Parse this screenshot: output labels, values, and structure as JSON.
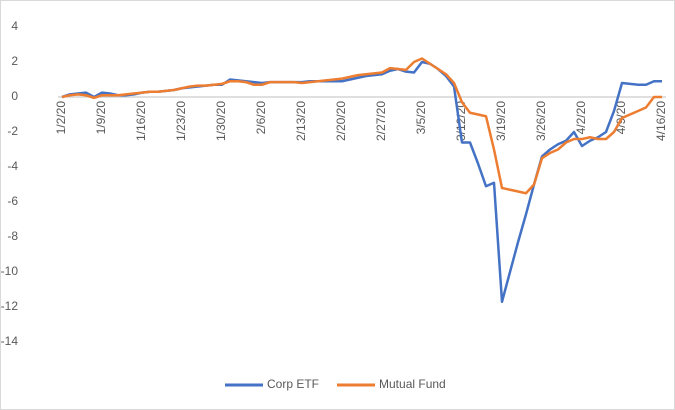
{
  "chart_data": {
    "type": "line",
    "categories": [
      "1/2/20",
      null,
      null,
      null,
      null,
      "1/9/20",
      null,
      null,
      null,
      null,
      "1/16/20",
      null,
      null,
      null,
      null,
      "1/23/20",
      null,
      null,
      null,
      null,
      "1/30/20",
      null,
      null,
      null,
      null,
      "2/6/20",
      null,
      null,
      null,
      null,
      "2/13/20",
      null,
      null,
      null,
      null,
      "2/20/20",
      null,
      null,
      null,
      null,
      "2/27/20",
      null,
      null,
      null,
      null,
      "3/5/20",
      null,
      null,
      null,
      null,
      "3/12/20",
      null,
      null,
      null,
      null,
      "3/19/20",
      null,
      null,
      null,
      null,
      "3/26/20",
      null,
      null,
      null,
      null,
      "4/2/20",
      null,
      null,
      null,
      null,
      "4/9/20",
      null,
      null,
      null,
      null,
      "4/16/20"
    ],
    "series": [
      {
        "name": "Corp ETF",
        "color": "#4472c4",
        "values": [
          0,
          0.15,
          0.2,
          0.25,
          0.0,
          0.25,
          0.2,
          0.1,
          0.1,
          0.15,
          0.25,
          0.3,
          0.3,
          0.35,
          0.4,
          0.5,
          0.55,
          0.6,
          0.65,
          0.7,
          0.7,
          1.0,
          0.95,
          0.9,
          0.85,
          0.8,
          0.85,
          0.85,
          0.85,
          0.85,
          0.85,
          0.9,
          0.9,
          0.9,
          0.9,
          0.9,
          1.0,
          1.1,
          1.2,
          1.25,
          1.3,
          1.5,
          1.6,
          1.45,
          1.4,
          2.0,
          1.9,
          1.6,
          1.2,
          0.6,
          -2.6,
          -2.6,
          -3.8,
          -5.1,
          -4.9,
          -11.7,
          -10,
          -8.3,
          -6.7,
          -5.0,
          -3.4,
          -3.0,
          -2.7,
          -2.5,
          -2.0,
          -2.8,
          -2.5,
          -2.3,
          -2.0,
          -0.8,
          0.8,
          0.75,
          0.7,
          0.7,
          0.9,
          0.9
        ]
      },
      {
        "name": "Mutual Fund",
        "color": "#ed7d31",
        "values": [
          0,
          0.1,
          0.15,
          0.1,
          -0.05,
          0.1,
          0.1,
          0.1,
          0.15,
          0.2,
          0.25,
          0.3,
          0.3,
          0.35,
          0.4,
          0.5,
          0.6,
          0.65,
          0.65,
          0.7,
          0.75,
          0.9,
          0.9,
          0.85,
          0.7,
          0.7,
          0.85,
          0.85,
          0.85,
          0.85,
          0.8,
          0.85,
          0.9,
          0.95,
          1.0,
          1.05,
          1.15,
          1.25,
          1.3,
          1.35,
          1.4,
          1.65,
          1.6,
          1.55,
          2.0,
          2.2,
          1.9,
          1.6,
          1.3,
          0.8,
          -0.3,
          -0.9,
          -1.0,
          -1.1,
          -3.0,
          -5.2,
          -5.3,
          -5.4,
          -5.5,
          -5.0,
          -3.5,
          -3.2,
          -3.0,
          -2.6,
          -2.4,
          -2.4,
          -2.3,
          -2.4,
          -2.4,
          -2.0,
          -1.2,
          -1.0,
          -0.8,
          -0.6,
          0.0,
          0.0
        ]
      }
    ],
    "ylim": [
      -14,
      4
    ],
    "yticks": [
      -14,
      -12,
      -10,
      -8,
      -6,
      -4,
      -2,
      0,
      2,
      4
    ],
    "grid": false,
    "legend": "bottom"
  }
}
